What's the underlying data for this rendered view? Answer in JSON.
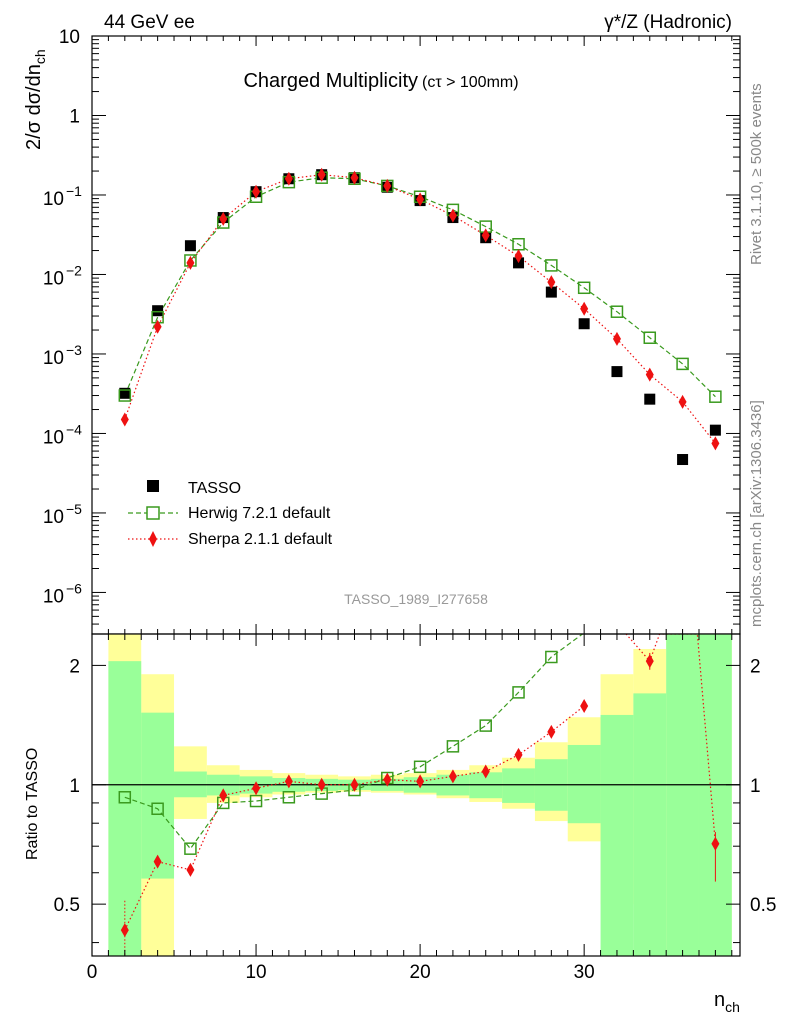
{
  "header": {
    "left": "44 GeV ee",
    "right": "γ*/Z (Hadronic)"
  },
  "side_labels": {
    "rivet": "Rivet 3.1.10, ≥ 500k events",
    "mcplots": "mcplots.cern.ch [arXiv:1306.3436]"
  },
  "watermark": "TASSO_1989_I277658",
  "chart_data": [
    {
      "type": "scatter",
      "title": "Charged Multiplicity",
      "title_suffix": "(cτ > 100mm)",
      "xlabel": "n",
      "xlabel_sub": "ch",
      "ylabel": "2/σ dσ/dn",
      "ylabel_sub": "ch",
      "yscale": "log",
      "xlim": [
        0,
        39.5
      ],
      "ylim": [
        3e-07,
        10
      ],
      "yticks": [
        {
          "v": 10,
          "mant": "10",
          "exp": ""
        },
        {
          "v": 1,
          "mant": "1",
          "exp": ""
        },
        {
          "v": 0.1,
          "mant": "10",
          "exp": "−1"
        },
        {
          "v": 0.01,
          "mant": "10",
          "exp": "−2"
        },
        {
          "v": 0.001,
          "mant": "10",
          "exp": "−3"
        },
        {
          "v": 0.0001,
          "mant": "10",
          "exp": "−4"
        },
        {
          "v": 1e-05,
          "mant": "10",
          "exp": "−5"
        },
        {
          "v": 1e-06,
          "mant": "10",
          "exp": "−6"
        }
      ],
      "legend_position": "lower-left",
      "series": [
        {
          "name": "TASSO",
          "color": "#000000",
          "marker": "filled-square",
          "x": [
            2,
            4,
            6,
            8,
            10,
            12,
            14,
            16,
            18,
            20,
            22,
            24,
            26,
            28,
            30,
            32,
            34,
            36,
            38
          ],
          "y": [
            0.00032,
            0.0035,
            0.023,
            0.052,
            0.11,
            0.16,
            0.18,
            0.165,
            0.125,
            0.085,
            0.052,
            0.029,
            0.014,
            0.006,
            0.0024,
            0.0006,
            0.00027,
            4.7e-05,
            0.00011
          ]
        },
        {
          "name": "Herwig 7.2.1 default",
          "color": "#3a9a1e",
          "marker": "open-square",
          "line": "dashed",
          "x": [
            2,
            4,
            6,
            8,
            10,
            12,
            14,
            16,
            18,
            20,
            22,
            24,
            26,
            28,
            30,
            32,
            34,
            36,
            38
          ],
          "y": [
            0.0003,
            0.0029,
            0.015,
            0.045,
            0.095,
            0.145,
            0.165,
            0.16,
            0.13,
            0.095,
            0.065,
            0.04,
            0.024,
            0.013,
            0.0068,
            0.0034,
            0.0016,
            0.00075,
            0.00029
          ]
        },
        {
          "name": "Sherpa 2.1.1 default",
          "color": "#ee1111",
          "marker": "filled-diamond",
          "line": "dotted",
          "x": [
            2,
            4,
            6,
            8,
            10,
            12,
            14,
            16,
            18,
            20,
            22,
            24,
            26,
            28,
            30,
            32,
            34,
            36,
            38
          ],
          "y": [
            0.00015,
            0.0022,
            0.014,
            0.05,
            0.11,
            0.16,
            0.18,
            0.165,
            0.13,
            0.088,
            0.055,
            0.031,
            0.017,
            0.008,
            0.0037,
            0.00155,
            0.00055,
            0.00025,
            7.5e-05
          ]
        }
      ]
    },
    {
      "type": "scatter",
      "ylabel": "Ratio to TASSO",
      "xlabel": "n",
      "xlabel_sub": "ch",
      "yscale": "log",
      "xlim": [
        0,
        39.5
      ],
      "ylim": [
        0.37,
        2.4
      ],
      "xticks": [
        0,
        10,
        20,
        30
      ],
      "yticks": [
        0.5,
        1,
        2
      ],
      "reference_line": 1,
      "bands": {
        "edges": [
          1,
          3,
          5,
          7,
          9,
          11,
          13,
          15,
          17,
          19,
          21,
          23,
          25,
          27,
          29,
          31,
          33,
          35,
          37,
          39
        ],
        "stat_lo": [
          0.37,
          0.58,
          0.93,
          0.94,
          0.95,
          0.96,
          0.965,
          0.97,
          0.965,
          0.955,
          0.94,
          0.925,
          0.9,
          0.86,
          0.8,
          0.37,
          0.37,
          0.37,
          0.37
        ],
        "stat_hi": [
          2.05,
          1.52,
          1.08,
          1.06,
          1.05,
          1.04,
          1.035,
          1.03,
          1.035,
          1.045,
          1.06,
          1.075,
          1.1,
          1.16,
          1.26,
          1.5,
          1.7,
          2.4,
          2.4
        ],
        "tot_lo": [
          0.37,
          0.37,
          0.82,
          0.9,
          0.93,
          0.945,
          0.955,
          0.96,
          0.955,
          0.945,
          0.925,
          0.905,
          0.87,
          0.81,
          0.72,
          0.5,
          0.37,
          0.37,
          0.37
        ],
        "tot_hi": [
          2.4,
          1.9,
          1.25,
          1.12,
          1.09,
          1.07,
          1.06,
          1.05,
          1.06,
          1.07,
          1.09,
          1.12,
          1.17,
          1.28,
          1.48,
          1.9,
          2.2,
          2.4,
          2.4
        ],
        "stat_color": "#99ff99",
        "tot_color": "#ffff99"
      },
      "series": [
        {
          "name": "Herwig 7.2.1 default",
          "color": "#3a9a1e",
          "marker": "open-square",
          "line": "dashed",
          "x": [
            2,
            4,
            6,
            8,
            10,
            12,
            14,
            16,
            18,
            20,
            22,
            24,
            26,
            28,
            29.9
          ],
          "y": [
            0.93,
            0.87,
            0.69,
            0.9,
            0.91,
            0.93,
            0.95,
            0.97,
            1.04,
            1.11,
            1.25,
            1.41,
            1.71,
            2.1,
            2.4
          ]
        },
        {
          "name": "Sherpa 2.1.1 default",
          "color": "#ee1111",
          "marker": "filled-diamond",
          "line": "dotted",
          "x": [
            2,
            4,
            6,
            8,
            10,
            12,
            14,
            16,
            18,
            20,
            22,
            24,
            26,
            28,
            30
          ],
          "y": [
            0.43,
            0.64,
            0.61,
            0.94,
            0.98,
            1.02,
            1.0,
            1.0,
            1.03,
            1.02,
            1.05,
            1.08,
            1.19,
            1.36,
            1.58
          ]
        },
        {
          "name": "Sherpa 2.1.1 default (high n)",
          "color": "#ee1111",
          "marker": "filled-diamond",
          "line": "dotted",
          "x": [
            31.4,
            32,
            34,
            34.6,
            36.9,
            38
          ],
          "y": [
            2.4,
            2.55,
            2.05,
            2.4,
            2.4,
            0.71
          ]
        }
      ]
    }
  ]
}
